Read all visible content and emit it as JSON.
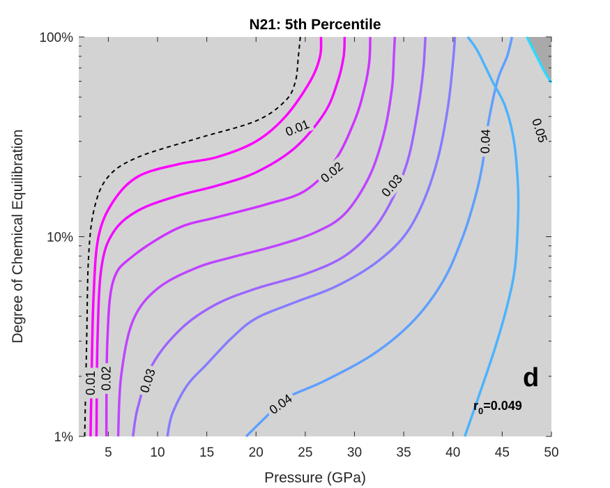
{
  "chart_data": {
    "type": "contour",
    "title": "N21: 5th Percentile",
    "xlabel": "Pressure (GPa)",
    "ylabel": "Degree of Chemical Equilibration",
    "xlim": [
      2,
      50
    ],
    "ylim": [
      1,
      100
    ],
    "yscale": "log",
    "x_ticks": [
      5,
      10,
      15,
      20,
      25,
      30,
      35,
      40,
      45,
      50
    ],
    "x_tick_labels": [
      "5",
      "10",
      "15",
      "20",
      "25",
      "30",
      "35",
      "40",
      "45",
      "50"
    ],
    "y_ticks": [
      1,
      10,
      100
    ],
    "y_tick_labels": [
      "1%",
      "10%",
      "100%"
    ],
    "panel_label": "d",
    "annotation": {
      "prefix": "r",
      "subscript": "0",
      "suffix": "=0.049"
    },
    "grid": false,
    "background_color": "#d3d3d3",
    "shaded_region_color": "#a9a9a9",
    "contours": [
      {
        "level": 0.0,
        "color": "#000000",
        "dashed": true,
        "label": "",
        "points": [
          [
            2.6,
            1
          ],
          [
            2.8,
            3
          ],
          [
            3.0,
            8
          ],
          [
            3.6,
            14
          ],
          [
            5,
            20
          ],
          [
            8,
            25
          ],
          [
            14,
            31
          ],
          [
            20,
            38
          ],
          [
            23,
            48
          ],
          [
            24,
            60
          ],
          [
            24.3,
            80
          ],
          [
            24.5,
            100
          ]
        ]
      },
      {
        "level": 0.01,
        "color": "#ff00ff",
        "label": "0.01",
        "points": [
          [
            3.2,
            1
          ],
          [
            3.3,
            2
          ],
          [
            3.5,
            5
          ],
          [
            4,
            10
          ],
          [
            5.5,
            15
          ],
          [
            8,
            20
          ],
          [
            12,
            23
          ],
          [
            16,
            25
          ],
          [
            20,
            30
          ],
          [
            23,
            40
          ],
          [
            25.5,
            60
          ],
          [
            26.5,
            80
          ],
          [
            26.6,
            100
          ]
        ]
      },
      {
        "level": 0.015,
        "color": "#f00cff",
        "label": "",
        "points": [
          [
            3.8,
            1
          ],
          [
            3.9,
            3
          ],
          [
            4.3,
            7
          ],
          [
            5.5,
            10.5
          ],
          [
            8,
            13.5
          ],
          [
            12,
            16
          ],
          [
            16,
            18
          ],
          [
            20,
            21
          ],
          [
            24,
            28
          ],
          [
            27,
            42
          ],
          [
            28.3,
            60
          ],
          [
            28.9,
            80
          ],
          [
            29,
            100
          ]
        ]
      },
      {
        "level": 0.02,
        "color": "#cd34ff",
        "label": "0.02",
        "points": [
          [
            4.8,
            1
          ],
          [
            4.9,
            3
          ],
          [
            5.5,
            6
          ],
          [
            7.5,
            8
          ],
          [
            12,
            11
          ],
          [
            16,
            12.5
          ],
          [
            21,
            14.5
          ],
          [
            25,
            17
          ],
          [
            28,
            24
          ],
          [
            30,
            38
          ],
          [
            31,
            55
          ],
          [
            31.5,
            75
          ],
          [
            31.6,
            100
          ]
        ]
      },
      {
        "level": 0.025,
        "color": "#be45ff",
        "label": "",
        "points": [
          [
            6,
            1
          ],
          [
            6.3,
            2
          ],
          [
            7.5,
            3.8
          ],
          [
            10,
            5.5
          ],
          [
            14,
            7
          ],
          [
            18,
            8
          ],
          [
            22,
            9
          ],
          [
            26,
            10.5
          ],
          [
            29,
            13
          ],
          [
            31.5,
            20
          ],
          [
            33,
            33
          ],
          [
            33.8,
            55
          ],
          [
            34,
            80
          ],
          [
            34.1,
            100
          ]
        ]
      },
      {
        "level": 0.03,
        "color": "#9d64ff",
        "label": "0.03",
        "points": [
          [
            7.5,
            1
          ],
          [
            8,
            1.4
          ],
          [
            9.5,
            2.3
          ],
          [
            12.5,
            3.5
          ],
          [
            16,
            4.6
          ],
          [
            20,
            5.5
          ],
          [
            25,
            6.5
          ],
          [
            29,
            8
          ],
          [
            32,
            11
          ],
          [
            34,
            16
          ],
          [
            35.5,
            25
          ],
          [
            36.5,
            45
          ],
          [
            37,
            70
          ],
          [
            37.2,
            100
          ]
        ]
      },
      {
        "level": 0.035,
        "color": "#867cff",
        "label": "",
        "points": [
          [
            11,
            1
          ],
          [
            11.5,
            1.3
          ],
          [
            13,
            1.8
          ],
          [
            15,
            2.3
          ],
          [
            17.5,
            3.1
          ],
          [
            20,
            3.9
          ],
          [
            24,
            4.7
          ],
          [
            28,
            5.6
          ],
          [
            32,
            7.3
          ],
          [
            35,
            10
          ],
          [
            37,
            15
          ],
          [
            38.5,
            25
          ],
          [
            39.5,
            45
          ],
          [
            40,
            75
          ],
          [
            40.2,
            100
          ]
        ]
      },
      {
        "level": 0.04,
        "color": "#5f9fff",
        "label": "0.04",
        "points": [
          [
            19,
            1
          ],
          [
            21,
            1.25
          ],
          [
            23,
            1.55
          ],
          [
            27,
            1.9
          ],
          [
            32,
            2.6
          ],
          [
            36,
            3.8
          ],
          [
            39,
            6
          ],
          [
            41,
            10
          ],
          [
            42.3,
            16
          ],
          [
            43,
            23
          ],
          [
            43.5,
            35
          ],
          [
            44.5,
            60
          ],
          [
            45.5,
            80
          ],
          [
            46,
            100
          ]
        ]
      },
      {
        "level": 0.045,
        "color": "#4bb3ff",
        "label": "",
        "points": [
          [
            41.2,
            1
          ],
          [
            43,
            1.8
          ],
          [
            44.3,
            2.8
          ],
          [
            45.5,
            4.5
          ],
          [
            46.3,
            7
          ],
          [
            46.6,
            12
          ],
          [
            46.6,
            18
          ],
          [
            46.2,
            30
          ],
          [
            45.3,
            45
          ],
          [
            44,
            60
          ],
          [
            42.5,
            85
          ],
          [
            41.5,
            100
          ]
        ]
      },
      {
        "level": 0.05,
        "color": "#2ed9ff",
        "label": "0.05",
        "points": [
          [
            47.5,
            100
          ],
          [
            48.5,
            80
          ],
          [
            49.3,
            67
          ],
          [
            50,
            59
          ]
        ]
      }
    ],
    "contour_labels": [
      {
        "text": "0.01",
        "x": 24.2,
        "y": 35,
        "angle": -22
      },
      {
        "text": "0.02",
        "x": 27.7,
        "y": 21,
        "angle": -40
      },
      {
        "text": "0.03",
        "x": 33.8,
        "y": 18,
        "angle": -50
      },
      {
        "text": "0.04",
        "x": 43.3,
        "y": 30,
        "angle": -88
      },
      {
        "text": "0.05",
        "x": 48.8,
        "y": 34,
        "angle": 72
      },
      {
        "text": "0.01",
        "x": 3.2,
        "y": 1.85,
        "angle": -90
      },
      {
        "text": "0.02",
        "x": 4.8,
        "y": 1.95,
        "angle": -90
      },
      {
        "text": "0.03",
        "x": 9.0,
        "y": 1.9,
        "angle": -72
      },
      {
        "text": "0.04",
        "x": 22.5,
        "y": 1.45,
        "angle": -36
      }
    ]
  }
}
